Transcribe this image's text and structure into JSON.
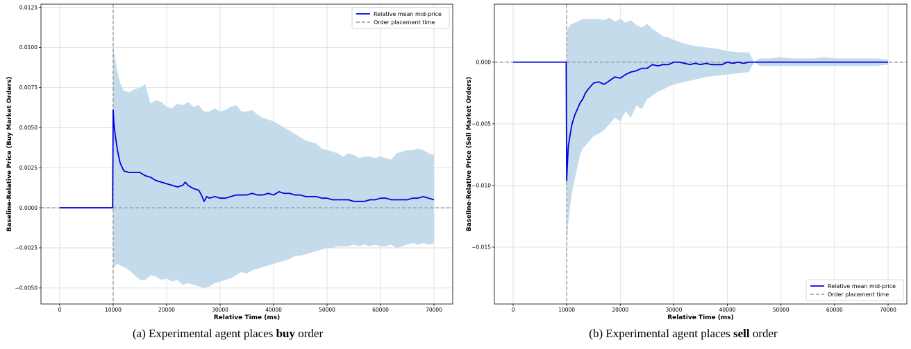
{
  "chart_data": [
    {
      "type": "line",
      "xlabel": "Relative Time (ms)",
      "ylabel": "Baseline-Relative Price (Buy Market Orders)",
      "xlim": [
        -3500,
        73500
      ],
      "ylim": [
        -0.006,
        0.0127
      ],
      "xticks": [
        0,
        10000,
        20000,
        30000,
        40000,
        50000,
        60000,
        70000
      ],
      "xtick_labels": [
        "0",
        "10000",
        "20000",
        "30000",
        "40000",
        "50000",
        "60000",
        "70000"
      ],
      "yticks": [
        -0.005,
        -0.0025,
        0.0,
        0.0025,
        0.005,
        0.0075,
        0.01,
        0.0125
      ],
      "ytick_labels": [
        "−0.0050",
        "−0.0025",
        "0.0000",
        "0.0025",
        "0.0050",
        "0.0075",
        "0.0100",
        "0.0125"
      ],
      "grid": true,
      "legend_position": "top-right",
      "series": [
        {
          "name": "Relative mean mid-price",
          "color": "#0000dd",
          "x": [
            0,
            9900,
            10000,
            10150,
            10400,
            10800,
            11300,
            12000,
            13000,
            14000,
            15000,
            16000,
            17000,
            18000,
            19000,
            20000,
            21000,
            22000,
            23000,
            23500,
            24000,
            24500,
            25000,
            26000,
            26500,
            27000,
            27500,
            28000,
            29000,
            30000,
            31000,
            32000,
            33000,
            34000,
            35000,
            36000,
            37000,
            38000,
            39000,
            40000,
            41000,
            42000,
            43000,
            44000,
            45000,
            46000,
            47000,
            48000,
            49000,
            50000,
            51000,
            52000,
            53000,
            54000,
            55000,
            56000,
            57000,
            58000,
            59000,
            60000,
            61000,
            62000,
            63000,
            64000,
            65000,
            66000,
            67000,
            68000,
            69000,
            70000
          ],
          "y": [
            0.0,
            0.0,
            0.0061,
            0.0052,
            0.0045,
            0.0036,
            0.0028,
            0.0023,
            0.0022,
            0.0022,
            0.0022,
            0.002,
            0.0019,
            0.0017,
            0.0016,
            0.0015,
            0.0014,
            0.0013,
            0.0014,
            0.0016,
            0.0014,
            0.0013,
            0.0012,
            0.0011,
            0.0008,
            0.0004,
            0.0007,
            0.0006,
            0.0007,
            0.0006,
            0.0006,
            0.0007,
            0.0008,
            0.0008,
            0.0008,
            0.0009,
            0.0008,
            0.0008,
            0.0009,
            0.0008,
            0.001,
            0.0009,
            0.0009,
            0.0008,
            0.0008,
            0.0007,
            0.0007,
            0.0007,
            0.0006,
            0.0006,
            0.0005,
            0.0005,
            0.0005,
            0.0005,
            0.0004,
            0.0004,
            0.0004,
            0.0005,
            0.0005,
            0.0006,
            0.0006,
            0.0005,
            0.0005,
            0.0005,
            0.0005,
            0.0006,
            0.0006,
            0.0007,
            0.0006,
            0.0005
          ]
        }
      ],
      "band": {
        "color": "#c4dbec",
        "x": [
          10000,
          10150,
          10400,
          10800,
          11300,
          12000,
          13000,
          14000,
          15000,
          16000,
          17000,
          18000,
          19000,
          20000,
          21000,
          22000,
          23000,
          24000,
          25000,
          26000,
          27000,
          28000,
          29000,
          30000,
          31000,
          32000,
          33000,
          34000,
          35000,
          36000,
          37000,
          38000,
          39000,
          40000,
          41000,
          42000,
          43000,
          44000,
          45000,
          46000,
          47000,
          48000,
          49000,
          50000,
          51000,
          52000,
          53000,
          54000,
          55000,
          56000,
          57000,
          58000,
          59000,
          60000,
          61000,
          62000,
          63000,
          64000,
          65000,
          66000,
          67000,
          68000,
          69000,
          70000
        ],
        "upper": [
          0.0101,
          0.0098,
          0.0092,
          0.0085,
          0.0078,
          0.0073,
          0.0072,
          0.0074,
          0.0075,
          0.0077,
          0.0065,
          0.0067,
          0.0066,
          0.0063,
          0.0062,
          0.0065,
          0.0064,
          0.0066,
          0.0063,
          0.0064,
          0.006,
          0.006,
          0.0062,
          0.006,
          0.0061,
          0.0063,
          0.0064,
          0.006,
          0.006,
          0.0061,
          0.0058,
          0.0056,
          0.0055,
          0.0054,
          0.0052,
          0.005,
          0.0048,
          0.0046,
          0.0044,
          0.0042,
          0.0041,
          0.004,
          0.0037,
          0.0036,
          0.0035,
          0.0034,
          0.0032,
          0.0034,
          0.0033,
          0.0031,
          0.0032,
          0.0032,
          0.0031,
          0.0032,
          0.0031,
          0.003,
          0.0034,
          0.0035,
          0.0036,
          0.0036,
          0.0037,
          0.0036,
          0.0034,
          0.0033
        ],
        "lower": [
          -0.0038,
          -0.0037,
          -0.0036,
          -0.0035,
          -0.0036,
          -0.0037,
          -0.0039,
          -0.0042,
          -0.0045,
          -0.0045,
          -0.0042,
          -0.0043,
          -0.0045,
          -0.0044,
          -0.0046,
          -0.0045,
          -0.0048,
          -0.0047,
          -0.0048,
          -0.0049,
          -0.005,
          -0.0049,
          -0.0047,
          -0.0046,
          -0.0045,
          -0.0044,
          -0.0042,
          -0.004,
          -0.0041,
          -0.0039,
          -0.0038,
          -0.0037,
          -0.0036,
          -0.0035,
          -0.0034,
          -0.0033,
          -0.0032,
          -0.003,
          -0.003,
          -0.0029,
          -0.0028,
          -0.0027,
          -0.0026,
          -0.0025,
          -0.0025,
          -0.0024,
          -0.0024,
          -0.0024,
          -0.0023,
          -0.0024,
          -0.0023,
          -0.0024,
          -0.0023,
          -0.0024,
          -0.0024,
          -0.0023,
          -0.0025,
          -0.0024,
          -0.0023,
          -0.0022,
          -0.0023,
          -0.0022,
          -0.0023,
          -0.0022
        ]
      },
      "hline": {
        "name": "Order placement time",
        "y": 0.0,
        "color": "#999999"
      },
      "vline": {
        "x": 10000,
        "color": "#999999"
      }
    },
    {
      "type": "line",
      "xlabel": "Relative Time (ms)",
      "ylabel": "Baseline-Relative Price (Sell Market Orders)",
      "xlim": [
        -3500,
        73500
      ],
      "ylim": [
        -0.0196,
        0.0047
      ],
      "xticks": [
        0,
        10000,
        20000,
        30000,
        40000,
        50000,
        60000,
        70000
      ],
      "xtick_labels": [
        "0",
        "10000",
        "20000",
        "30000",
        "40000",
        "50000",
        "60000",
        "70000"
      ],
      "yticks": [
        -0.015,
        -0.01,
        -0.005,
        0.0
      ],
      "ytick_labels": [
        "−0.015",
        "−0.010",
        "−0.005",
        "0.000"
      ],
      "grid": true,
      "legend_position": "bottom-right",
      "series": [
        {
          "name": "Relative mean mid-price",
          "color": "#0000dd",
          "x": [
            0,
            9900,
            10000,
            10100,
            10300,
            10600,
            11000,
            11500,
            12000,
            12500,
            13000,
            13500,
            14000,
            15000,
            16000,
            17000,
            18000,
            19000,
            20000,
            21000,
            22000,
            23000,
            24000,
            25000,
            26000,
            27000,
            28000,
            29000,
            30000,
            31000,
            32000,
            33000,
            34000,
            35000,
            36000,
            37000,
            38000,
            39000,
            40000,
            41000,
            42000,
            43000,
            44000,
            45000,
            46000,
            47000,
            48000,
            50000,
            52000,
            54000,
            56000,
            58000,
            60000,
            62000,
            64000,
            66000,
            68000,
            70000
          ],
          "y": [
            0.0,
            0.0,
            -0.0096,
            -0.0085,
            -0.0068,
            -0.006,
            -0.005,
            -0.0043,
            -0.0038,
            -0.0033,
            -0.003,
            -0.0025,
            -0.0022,
            -0.0017,
            -0.0016,
            -0.0018,
            -0.0015,
            -0.0012,
            -0.0013,
            -0.001,
            -0.0008,
            -0.0007,
            -0.0005,
            -0.0005,
            -0.0002,
            -0.0003,
            -0.0002,
            -0.0002,
            0.0,
            0.0,
            -0.0001,
            -0.0002,
            -0.0001,
            -0.0002,
            -0.0001,
            -0.0002,
            -0.0002,
            -0.0002,
            0.0,
            -0.0001,
            0.0,
            -0.0001,
            0.0,
            0.0,
            0.0,
            0.0,
            0.0,
            0.0,
            0.0,
            0.0,
            0.0,
            0.0,
            0.0,
            0.0,
            0.0,
            0.0,
            0.0,
            0.0
          ]
        }
      ],
      "band": {
        "color": "#c4dbec",
        "x": [
          10000,
          10100,
          10300,
          10600,
          11000,
          11500,
          12000,
          12500,
          13000,
          14000,
          15000,
          16000,
          17000,
          18000,
          19000,
          20000,
          21000,
          22000,
          23000,
          24000,
          25000,
          26000,
          27000,
          28000,
          29000,
          30000,
          32000,
          34000,
          36000,
          38000,
          40000,
          42000,
          44000,
          45000,
          46000,
          48000,
          50000,
          52000,
          54000,
          56000,
          58000,
          60000,
          62000,
          64000,
          66000,
          68000,
          70000
        ],
        "upper": [
          0.0,
          0.0025,
          0.0028,
          0.003,
          0.0031,
          0.0032,
          0.0033,
          0.0034,
          0.0035,
          0.0035,
          0.0035,
          0.0035,
          0.0034,
          0.0036,
          0.0033,
          0.0035,
          0.0032,
          0.0034,
          0.003,
          0.0028,
          0.0031,
          0.0027,
          0.0024,
          0.0021,
          0.002,
          0.0018,
          0.0015,
          0.0013,
          0.0012,
          0.0011,
          0.0009,
          0.0008,
          0.0008,
          0.0,
          0.0003,
          0.0003,
          0.0004,
          0.0003,
          0.0003,
          0.0003,
          0.0004,
          0.0003,
          0.0003,
          0.0003,
          0.0003,
          0.0003,
          0.0002
        ],
        "lower": [
          -0.0196,
          -0.0145,
          -0.013,
          -0.0118,
          -0.0105,
          -0.0095,
          -0.0085,
          -0.0075,
          -0.007,
          -0.0065,
          -0.006,
          -0.0058,
          -0.0055,
          -0.005,
          -0.0045,
          -0.0048,
          -0.004,
          -0.0045,
          -0.0035,
          -0.0038,
          -0.003,
          -0.0027,
          -0.0024,
          -0.0022,
          -0.002,
          -0.0018,
          -0.0016,
          -0.0014,
          -0.0012,
          -0.0011,
          -0.001,
          -0.0009,
          -0.0008,
          0.0,
          -0.0003,
          -0.0003,
          -0.0003,
          -0.0003,
          -0.0003,
          -0.0003,
          -0.0003,
          -0.0003,
          -0.0003,
          -0.0003,
          -0.0003,
          -0.0003,
          -0.0002
        ]
      },
      "hline": {
        "name": "Order placement time",
        "y": 0.0,
        "color": "#999999"
      },
      "vline": {
        "x": 10000,
        "color": "#999999"
      }
    }
  ],
  "captions": {
    "a": {
      "prefix": "(a) Experimental agent places ",
      "bold": "buy",
      "suffix": " order"
    },
    "b": {
      "prefix": "(b) Experimental agent places ",
      "bold": "sell",
      "suffix": " order"
    }
  }
}
